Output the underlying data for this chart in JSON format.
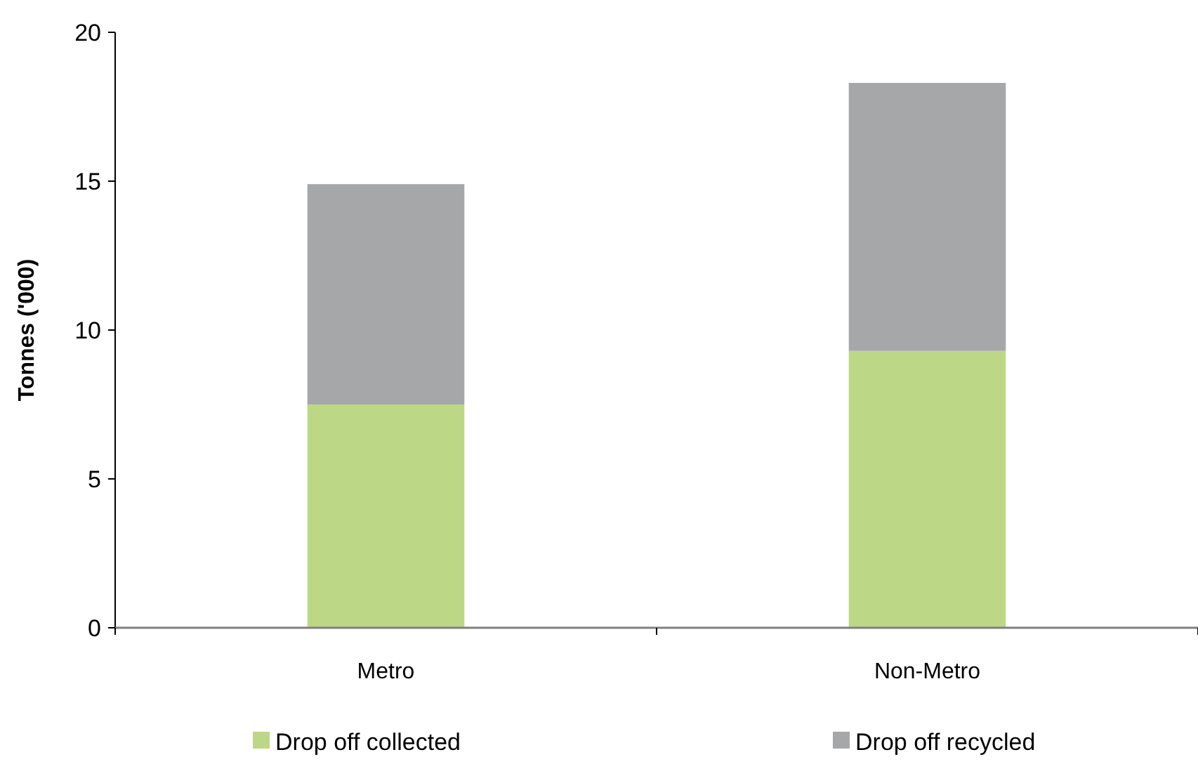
{
  "chart_data": {
    "type": "bar",
    "ylabel": "Tonnes ('000)",
    "categories": [
      "Metro",
      "Non-Metro"
    ],
    "stacked": true,
    "series": [
      {
        "name": "Drop off collected",
        "color": "#bcd886",
        "values": [
          7.5,
          9.3
        ]
      },
      {
        "name": "Drop off recycled",
        "color": "#a6a7a9",
        "values": [
          7.4,
          9.0
        ]
      }
    ],
    "ylim": [
      0,
      20
    ],
    "yticks": [
      0,
      5,
      10,
      15,
      20
    ],
    "grid": false,
    "legend": "bottom"
  }
}
